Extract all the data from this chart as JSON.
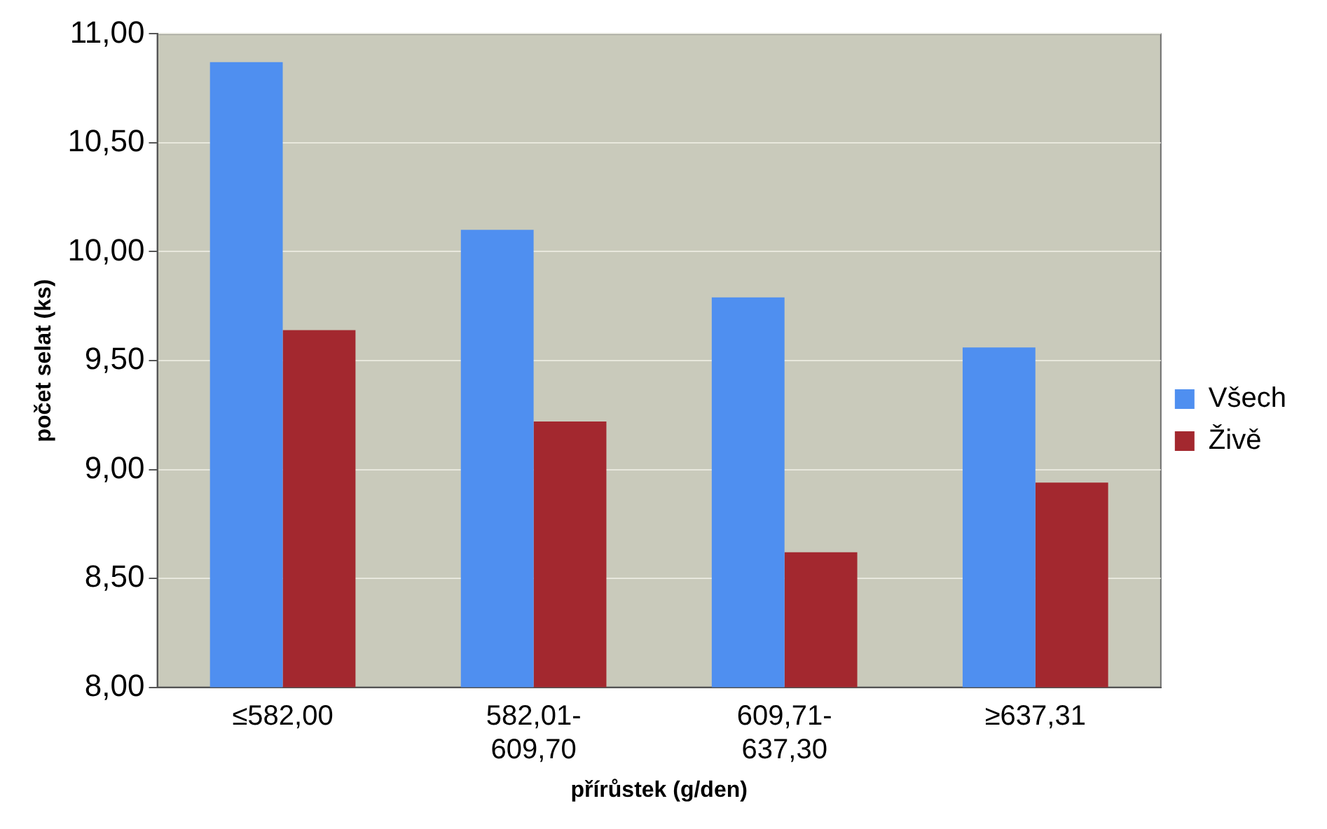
{
  "chart_data": {
    "type": "bar",
    "xlabel": "přírůstek (g/den)",
    "ylabel": "počet selat (ks)",
    "categories": [
      "≤582,00",
      "582,01-609,70",
      "609,71-637,30",
      "≥637,31"
    ],
    "series": [
      {
        "name": "Všech",
        "color": "#4f8ff0",
        "values": [
          10.87,
          10.1,
          9.79,
          9.56
        ]
      },
      {
        "name": "Živě",
        "color": "#a3282f",
        "values": [
          9.64,
          9.22,
          8.62,
          8.94
        ]
      }
    ],
    "ylim": [
      8,
      11
    ],
    "yticks": [
      {
        "value": 8,
        "label": "8,00"
      },
      {
        "value": 8.5,
        "label": "8,50"
      },
      {
        "value": 9,
        "label": "9,00"
      },
      {
        "value": 9.5,
        "label": "9,50"
      },
      {
        "value": 10,
        "label": "10,00"
      },
      {
        "value": 10.5,
        "label": "10,50"
      },
      {
        "value": 11,
        "label": "11,00"
      }
    ],
    "grid": "y",
    "legend": "right"
  }
}
